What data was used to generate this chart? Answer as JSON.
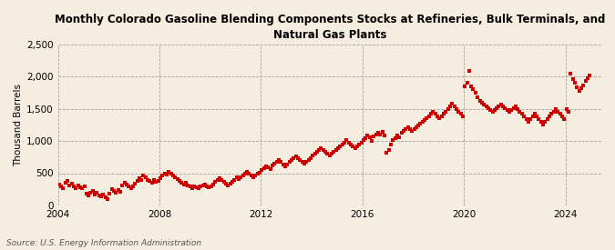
{
  "title": "Monthly Colorado Gasoline Blending Components Stocks at Refineries, Bulk Terminals, and\nNatural Gas Plants",
  "ylabel": "Thousand Barrels",
  "source": "Source: U.S. Energy Information Administration",
  "background_color": "#f5ede0",
  "plot_bg_color": "#f5ede0",
  "dot_color": "#cc0000",
  "ylim": [
    0,
    2500
  ],
  "yticks": [
    0,
    500,
    1000,
    1500,
    2000,
    2500
  ],
  "ytick_labels": [
    "0",
    "500",
    "1,000",
    "1,500",
    "2,000",
    "2,500"
  ],
  "data_points": [
    [
      2004,
      1,
      330
    ],
    [
      2004,
      2,
      300
    ],
    [
      2004,
      3,
      260
    ],
    [
      2004,
      4,
      350
    ],
    [
      2004,
      5,
      380
    ],
    [
      2004,
      6,
      310
    ],
    [
      2004,
      7,
      340
    ],
    [
      2004,
      8,
      290
    ],
    [
      2004,
      9,
      270
    ],
    [
      2004,
      10,
      310
    ],
    [
      2004,
      11,
      280
    ],
    [
      2004,
      12,
      260
    ],
    [
      2005,
      1,
      290
    ],
    [
      2005,
      2,
      180
    ],
    [
      2005,
      3,
      150
    ],
    [
      2005,
      4,
      200
    ],
    [
      2005,
      5,
      230
    ],
    [
      2005,
      6,
      170
    ],
    [
      2005,
      7,
      190
    ],
    [
      2005,
      8,
      160
    ],
    [
      2005,
      9,
      140
    ],
    [
      2005,
      10,
      170
    ],
    [
      2005,
      11,
      120
    ],
    [
      2005,
      12,
      100
    ],
    [
      2006,
      1,
      180
    ],
    [
      2006,
      2,
      250
    ],
    [
      2006,
      3,
      220
    ],
    [
      2006,
      4,
      200
    ],
    [
      2006,
      5,
      240
    ],
    [
      2006,
      6,
      210
    ],
    [
      2006,
      7,
      310
    ],
    [
      2006,
      8,
      350
    ],
    [
      2006,
      9,
      330
    ],
    [
      2006,
      10,
      290
    ],
    [
      2006,
      11,
      270
    ],
    [
      2006,
      12,
      300
    ],
    [
      2007,
      1,
      340
    ],
    [
      2007,
      2,
      380
    ],
    [
      2007,
      3,
      420
    ],
    [
      2007,
      4,
      400
    ],
    [
      2007,
      5,
      460
    ],
    [
      2007,
      6,
      440
    ],
    [
      2007,
      7,
      400
    ],
    [
      2007,
      8,
      380
    ],
    [
      2007,
      9,
      350
    ],
    [
      2007,
      10,
      390
    ],
    [
      2007,
      11,
      360
    ],
    [
      2007,
      12,
      380
    ],
    [
      2008,
      1,
      420
    ],
    [
      2008,
      2,
      460
    ],
    [
      2008,
      3,
      500
    ],
    [
      2008,
      4,
      480
    ],
    [
      2008,
      5,
      520
    ],
    [
      2008,
      6,
      490
    ],
    [
      2008,
      7,
      460
    ],
    [
      2008,
      8,
      430
    ],
    [
      2008,
      9,
      410
    ],
    [
      2008,
      10,
      380
    ],
    [
      2008,
      11,
      350
    ],
    [
      2008,
      12,
      320
    ],
    [
      2009,
      1,
      350
    ],
    [
      2009,
      2,
      310
    ],
    [
      2009,
      3,
      290
    ],
    [
      2009,
      4,
      270
    ],
    [
      2009,
      5,
      300
    ],
    [
      2009,
      6,
      280
    ],
    [
      2009,
      7,
      260
    ],
    [
      2009,
      8,
      290
    ],
    [
      2009,
      9,
      310
    ],
    [
      2009,
      10,
      330
    ],
    [
      2009,
      11,
      300
    ],
    [
      2009,
      12,
      280
    ],
    [
      2010,
      1,
      300
    ],
    [
      2010,
      2,
      330
    ],
    [
      2010,
      3,
      360
    ],
    [
      2010,
      4,
      390
    ],
    [
      2010,
      5,
      420
    ],
    [
      2010,
      6,
      400
    ],
    [
      2010,
      7,
      370
    ],
    [
      2010,
      8,
      340
    ],
    [
      2010,
      9,
      310
    ],
    [
      2010,
      10,
      340
    ],
    [
      2010,
      11,
      370
    ],
    [
      2010,
      12,
      400
    ],
    [
      2011,
      1,
      430
    ],
    [
      2011,
      2,
      410
    ],
    [
      2011,
      3,
      440
    ],
    [
      2011,
      4,
      470
    ],
    [
      2011,
      5,
      500
    ],
    [
      2011,
      6,
      520
    ],
    [
      2011,
      7,
      490
    ],
    [
      2011,
      8,
      460
    ],
    [
      2011,
      9,
      430
    ],
    [
      2011,
      10,
      460
    ],
    [
      2011,
      11,
      490
    ],
    [
      2011,
      12,
      510
    ],
    [
      2012,
      1,
      550
    ],
    [
      2012,
      2,
      580
    ],
    [
      2012,
      3,
      610
    ],
    [
      2012,
      4,
      590
    ],
    [
      2012,
      5,
      560
    ],
    [
      2012,
      6,
      620
    ],
    [
      2012,
      7,
      650
    ],
    [
      2012,
      8,
      680
    ],
    [
      2012,
      9,
      700
    ],
    [
      2012,
      10,
      670
    ],
    [
      2012,
      11,
      640
    ],
    [
      2012,
      12,
      610
    ],
    [
      2013,
      1,
      640
    ],
    [
      2013,
      2,
      670
    ],
    [
      2013,
      3,
      700
    ],
    [
      2013,
      4,
      730
    ],
    [
      2013,
      5,
      760
    ],
    [
      2013,
      6,
      740
    ],
    [
      2013,
      7,
      710
    ],
    [
      2013,
      8,
      680
    ],
    [
      2013,
      9,
      650
    ],
    [
      2013,
      10,
      680
    ],
    [
      2013,
      11,
      710
    ],
    [
      2013,
      12,
      740
    ],
    [
      2014,
      1,
      770
    ],
    [
      2014,
      2,
      800
    ],
    [
      2014,
      3,
      830
    ],
    [
      2014,
      4,
      860
    ],
    [
      2014,
      5,
      890
    ],
    [
      2014,
      6,
      860
    ],
    [
      2014,
      7,
      830
    ],
    [
      2014,
      8,
      800
    ],
    [
      2014,
      9,
      770
    ],
    [
      2014,
      10,
      800
    ],
    [
      2014,
      11,
      830
    ],
    [
      2014,
      12,
      860
    ],
    [
      2015,
      1,
      890
    ],
    [
      2015,
      2,
      920
    ],
    [
      2015,
      3,
      950
    ],
    [
      2015,
      4,
      980
    ],
    [
      2015,
      5,
      1010
    ],
    [
      2015,
      6,
      980
    ],
    [
      2015,
      7,
      950
    ],
    [
      2015,
      8,
      920
    ],
    [
      2015,
      9,
      890
    ],
    [
      2015,
      10,
      920
    ],
    [
      2015,
      11,
      950
    ],
    [
      2015,
      12,
      980
    ],
    [
      2016,
      1,
      1010
    ],
    [
      2016,
      2,
      1050
    ],
    [
      2016,
      3,
      1090
    ],
    [
      2016,
      4,
      1060
    ],
    [
      2016,
      5,
      1000
    ],
    [
      2016,
      6,
      1070
    ],
    [
      2016,
      7,
      1100
    ],
    [
      2016,
      8,
      1130
    ],
    [
      2016,
      9,
      1100
    ],
    [
      2016,
      10,
      1140
    ],
    [
      2016,
      11,
      1080
    ],
    [
      2016,
      12,
      820
    ],
    [
      2017,
      1,
      860
    ],
    [
      2017,
      2,
      950
    ],
    [
      2017,
      3,
      1010
    ],
    [
      2017,
      4,
      1050
    ],
    [
      2017,
      5,
      1090
    ],
    [
      2017,
      6,
      1060
    ],
    [
      2017,
      7,
      1130
    ],
    [
      2017,
      8,
      1160
    ],
    [
      2017,
      9,
      1190
    ],
    [
      2017,
      10,
      1220
    ],
    [
      2017,
      11,
      1180
    ],
    [
      2017,
      12,
      1150
    ],
    [
      2018,
      1,
      1180
    ],
    [
      2018,
      2,
      1210
    ],
    [
      2018,
      3,
      1240
    ],
    [
      2018,
      4,
      1270
    ],
    [
      2018,
      5,
      1300
    ],
    [
      2018,
      6,
      1330
    ],
    [
      2018,
      7,
      1360
    ],
    [
      2018,
      8,
      1390
    ],
    [
      2018,
      9,
      1420
    ],
    [
      2018,
      10,
      1450
    ],
    [
      2018,
      11,
      1420
    ],
    [
      2018,
      12,
      1390
    ],
    [
      2019,
      1,
      1350
    ],
    [
      2019,
      2,
      1380
    ],
    [
      2019,
      3,
      1420
    ],
    [
      2019,
      4,
      1460
    ],
    [
      2019,
      5,
      1500
    ],
    [
      2019,
      6,
      1540
    ],
    [
      2019,
      7,
      1580
    ],
    [
      2019,
      8,
      1540
    ],
    [
      2019,
      9,
      1500
    ],
    [
      2019,
      10,
      1460
    ],
    [
      2019,
      11,
      1420
    ],
    [
      2019,
      12,
      1390
    ],
    [
      2020,
      1,
      1850
    ],
    [
      2020,
      2,
      1900
    ],
    [
      2020,
      3,
      2090
    ],
    [
      2020,
      4,
      1850
    ],
    [
      2020,
      5,
      1800
    ],
    [
      2020,
      6,
      1750
    ],
    [
      2020,
      7,
      1680
    ],
    [
      2020,
      8,
      1620
    ],
    [
      2020,
      9,
      1600
    ],
    [
      2020,
      10,
      1570
    ],
    [
      2020,
      11,
      1540
    ],
    [
      2020,
      12,
      1510
    ],
    [
      2021,
      1,
      1480
    ],
    [
      2021,
      2,
      1450
    ],
    [
      2021,
      3,
      1480
    ],
    [
      2021,
      4,
      1510
    ],
    [
      2021,
      5,
      1540
    ],
    [
      2021,
      6,
      1570
    ],
    [
      2021,
      7,
      1540
    ],
    [
      2021,
      8,
      1510
    ],
    [
      2021,
      9,
      1480
    ],
    [
      2021,
      10,
      1450
    ],
    [
      2021,
      11,
      1480
    ],
    [
      2021,
      12,
      1510
    ],
    [
      2022,
      1,
      1540
    ],
    [
      2022,
      2,
      1500
    ],
    [
      2022,
      3,
      1460
    ],
    [
      2022,
      4,
      1420
    ],
    [
      2022,
      5,
      1380
    ],
    [
      2022,
      6,
      1340
    ],
    [
      2022,
      7,
      1300
    ],
    [
      2022,
      8,
      1340
    ],
    [
      2022,
      9,
      1380
    ],
    [
      2022,
      10,
      1420
    ],
    [
      2022,
      11,
      1380
    ],
    [
      2022,
      12,
      1340
    ],
    [
      2023,
      1,
      1300
    ],
    [
      2023,
      2,
      1260
    ],
    [
      2023,
      3,
      1300
    ],
    [
      2023,
      4,
      1340
    ],
    [
      2023,
      5,
      1380
    ],
    [
      2023,
      6,
      1420
    ],
    [
      2023,
      7,
      1460
    ],
    [
      2023,
      8,
      1500
    ],
    [
      2023,
      9,
      1460
    ],
    [
      2023,
      10,
      1420
    ],
    [
      2023,
      11,
      1380
    ],
    [
      2023,
      12,
      1340
    ],
    [
      2024,
      1,
      1500
    ],
    [
      2024,
      2,
      1460
    ],
    [
      2024,
      3,
      2050
    ],
    [
      2024,
      4,
      1960
    ],
    [
      2024,
      5,
      1900
    ],
    [
      2024,
      6,
      1840
    ],
    [
      2024,
      7,
      1780
    ],
    [
      2024,
      8,
      1820
    ],
    [
      2024,
      9,
      1860
    ],
    [
      2024,
      10,
      1940
    ],
    [
      2024,
      11,
      1980
    ],
    [
      2024,
      12,
      2020
    ]
  ]
}
